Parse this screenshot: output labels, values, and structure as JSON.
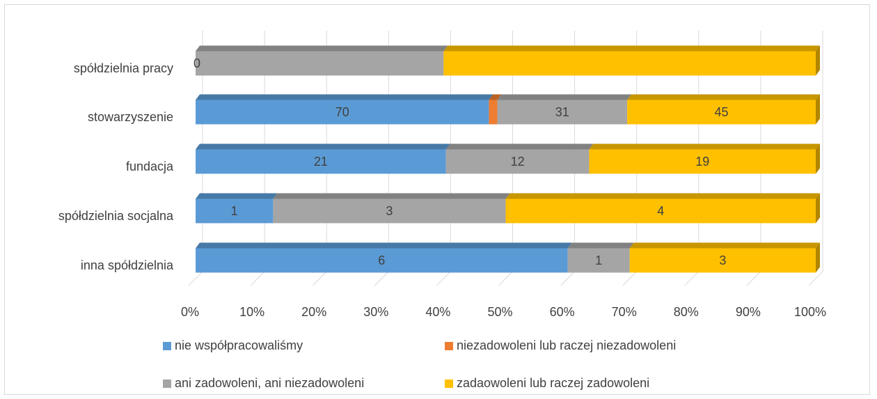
{
  "chart_data": {
    "type": "bar",
    "orientation": "horizontal",
    "stacked": "percent",
    "style": "3d",
    "categories": [
      "spółdzielnia pracy",
      "stowarzyszenie",
      "fundacja",
      "spółdzielnia socjalna",
      "inna spółdzielnia"
    ],
    "series": [
      {
        "name": "nie współpracowaliśmy",
        "color": "#5b9bd5",
        "values": [
          0,
          70,
          21,
          1,
          6
        ]
      },
      {
        "name": "niezadowoleni lub raczej niezadowoleni",
        "color": "#ed7d31",
        "values": [
          0,
          2,
          0,
          0,
          0
        ]
      },
      {
        "name": "ani zadowoleni, ani niezadowoleni",
        "color": "#a5a5a5",
        "values": [
          2,
          31,
          12,
          3,
          1
        ]
      },
      {
        "name": "zadaowoleni lub raczej zadowoleni",
        "color": "#ffc000",
        "values": [
          3,
          45,
          19,
          4,
          3
        ]
      }
    ],
    "data_labels": [
      [
        "0",
        "",
        "",
        ""
      ],
      [
        "70",
        "",
        "31",
        "45"
      ],
      [
        "21",
        "",
        "12",
        "19"
      ],
      [
        "1",
        "",
        "3",
        "4"
      ],
      [
        "6",
        "",
        "1",
        "3"
      ]
    ],
    "x_ticks": [
      "0%",
      "10%",
      "20%",
      "30%",
      "40%",
      "50%",
      "60%",
      "70%",
      "80%",
      "90%",
      "100%"
    ],
    "xlim": [
      0,
      100
    ],
    "grid": true,
    "legend_position": "bottom"
  }
}
